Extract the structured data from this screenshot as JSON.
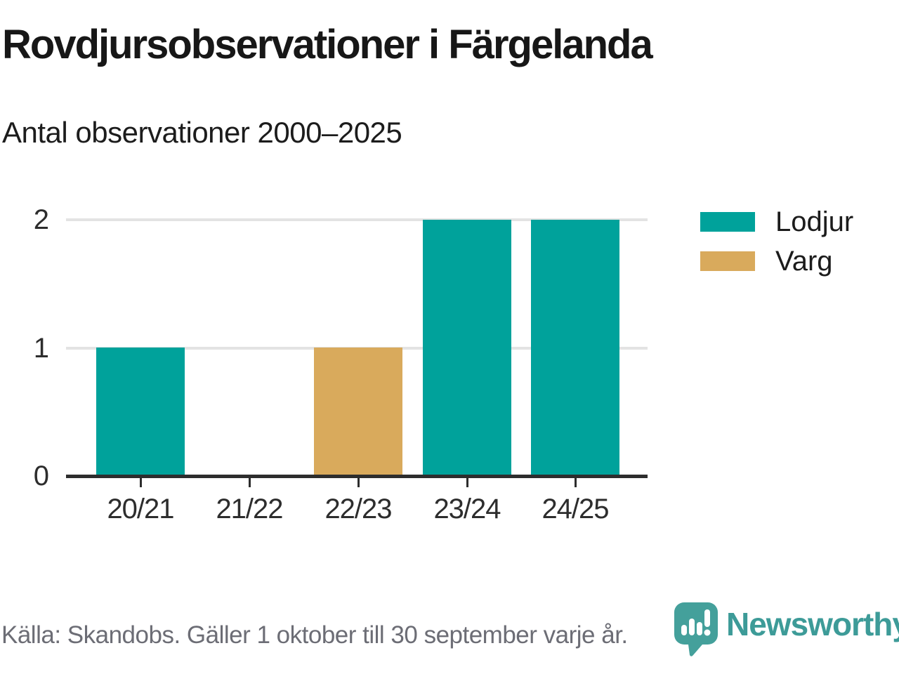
{
  "title": "Rovdjursobservationer i Färgelanda",
  "subtitle": "Antal observationer 2000–2025",
  "footer": {
    "source_text": "Källa: Skandobs. Gäller 1 oktober till 30 september varje år.",
    "brand": "Newsworthy"
  },
  "colors": {
    "lodjur_teal": "#00a29b",
    "varg_gold": "#d9aa5c",
    "axis": "#2d2d2d",
    "gridline": "#e3e3e3",
    "brand_teal": "#3d9b98",
    "logo_teal": "#44a09b",
    "source_gray": "#6c6d75"
  },
  "chart_data": {
    "type": "bar",
    "title": "Rovdjursobservationer i Färgelanda",
    "subtitle": "Antal observationer 2000–2025",
    "categories": [
      "20/21",
      "21/22",
      "22/23",
      "23/24",
      "24/25"
    ],
    "series": [
      {
        "name": "Lodjur",
        "color": "#00a29b",
        "values": [
          1,
          0,
          0,
          2,
          2
        ]
      },
      {
        "name": "Varg",
        "color": "#d9aa5c",
        "values": [
          0,
          0,
          1,
          0,
          0
        ]
      }
    ],
    "ylabel": "",
    "xlabel": "",
    "ylim": [
      0,
      2
    ],
    "yticks": [
      0,
      1,
      2
    ],
    "grid": true,
    "legend_position": "right"
  }
}
